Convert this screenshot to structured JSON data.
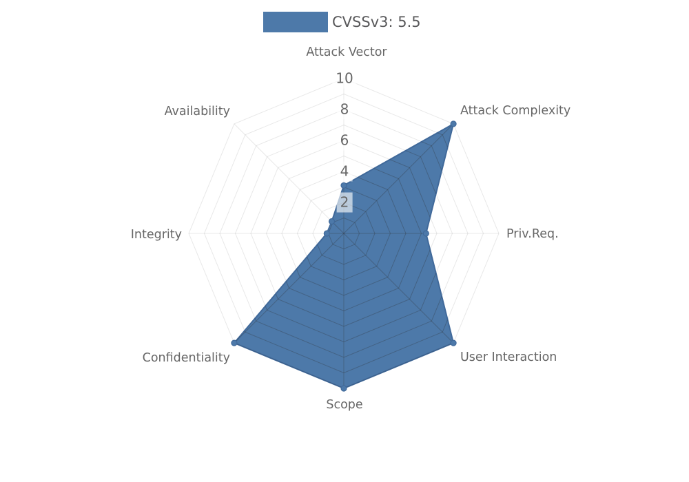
{
  "page": {
    "background_color": "#ffffff"
  },
  "legend": {
    "label": "CVSSv3: 5.5",
    "swatch_color": "#4d79a9"
  },
  "chart_data": {
    "type": "radar",
    "axes": [
      "Attack Vector",
      "Attack Complexity",
      "Priv.Req.",
      "User Interaction",
      "Scope",
      "Confidentiality",
      "Integrity",
      "Availability"
    ],
    "series": [
      {
        "name": "CVSSv3: 5.5",
        "values": [
          3.1,
          10,
          5.3,
          10,
          10,
          10,
          1.1,
          1.1
        ],
        "fill_color": "#4d79a9",
        "stroke_color": "#40699a"
      }
    ],
    "scale": {
      "min": 0,
      "max": 10,
      "ring_step": 1,
      "tick_values": [
        "2",
        "4",
        "6",
        "8",
        "10"
      ],
      "start_angle_deg": 90,
      "direction": "clockwise"
    },
    "grid": {
      "spokes": 8,
      "rings": 10,
      "outer_line_color": "rgba(110,110,110,0.16)",
      "inner_line_color": "rgba(45,45,45,0.30)"
    },
    "text_color": "#666666",
    "legend_position": "top-center"
  }
}
